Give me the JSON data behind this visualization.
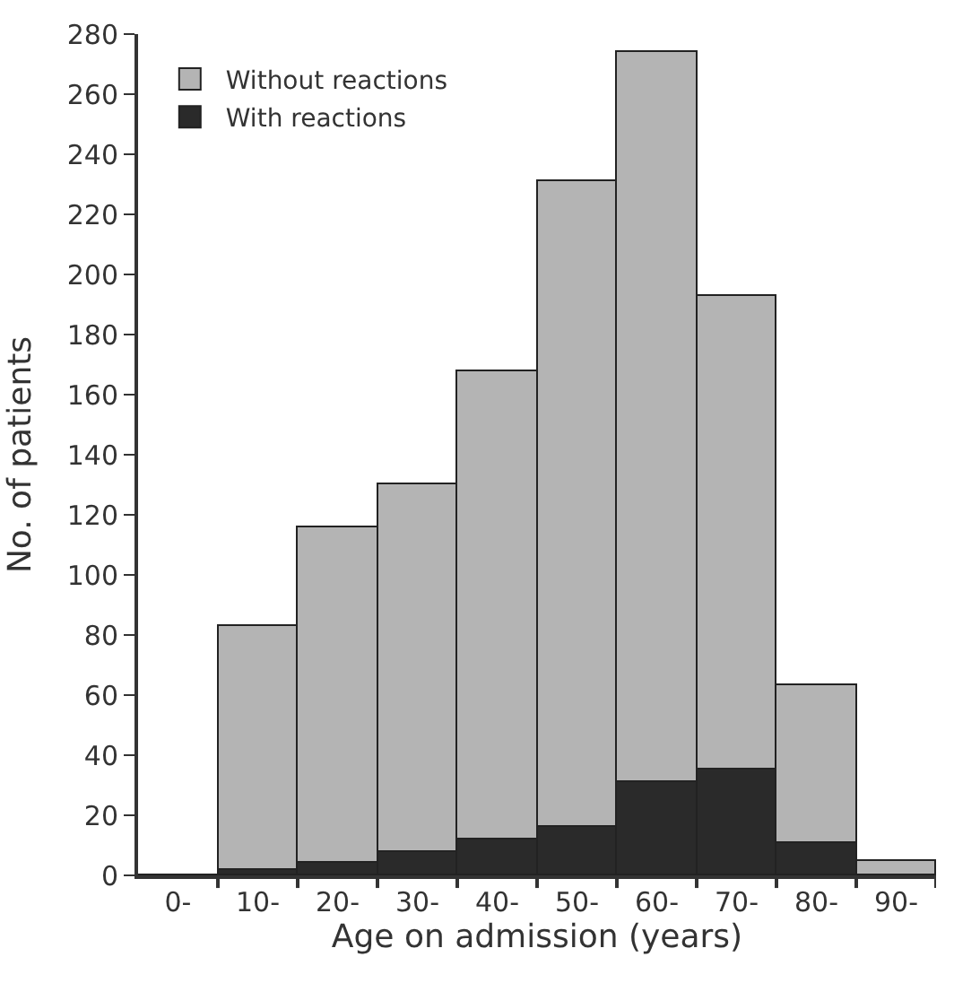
{
  "chart_data": {
    "type": "bar",
    "stacked": true,
    "xlabel": "Age on admission (years)",
    "ylabel": "No. of patients",
    "categories": [
      "0-",
      "10-",
      "20-",
      "30-",
      "40-",
      "50-",
      "60-",
      "70-",
      "80-",
      "90-"
    ],
    "series": [
      {
        "name": "With reactions",
        "color": "#2a2a2a",
        "values": [
          0,
          2,
          4,
          8,
          12,
          16,
          31,
          35,
          11,
          0
        ]
      },
      {
        "name": "Without reactions",
        "color": "#b4b4b4",
        "values": [
          0,
          81,
          112,
          122,
          156,
          215,
          243,
          158,
          52,
          5
        ]
      }
    ],
    "ylim": [
      0,
      280
    ],
    "yticks": [
      0,
      20,
      40,
      60,
      80,
      100,
      120,
      140,
      160,
      180,
      200,
      220,
      240,
      260,
      280
    ],
    "legend": "top left"
  }
}
